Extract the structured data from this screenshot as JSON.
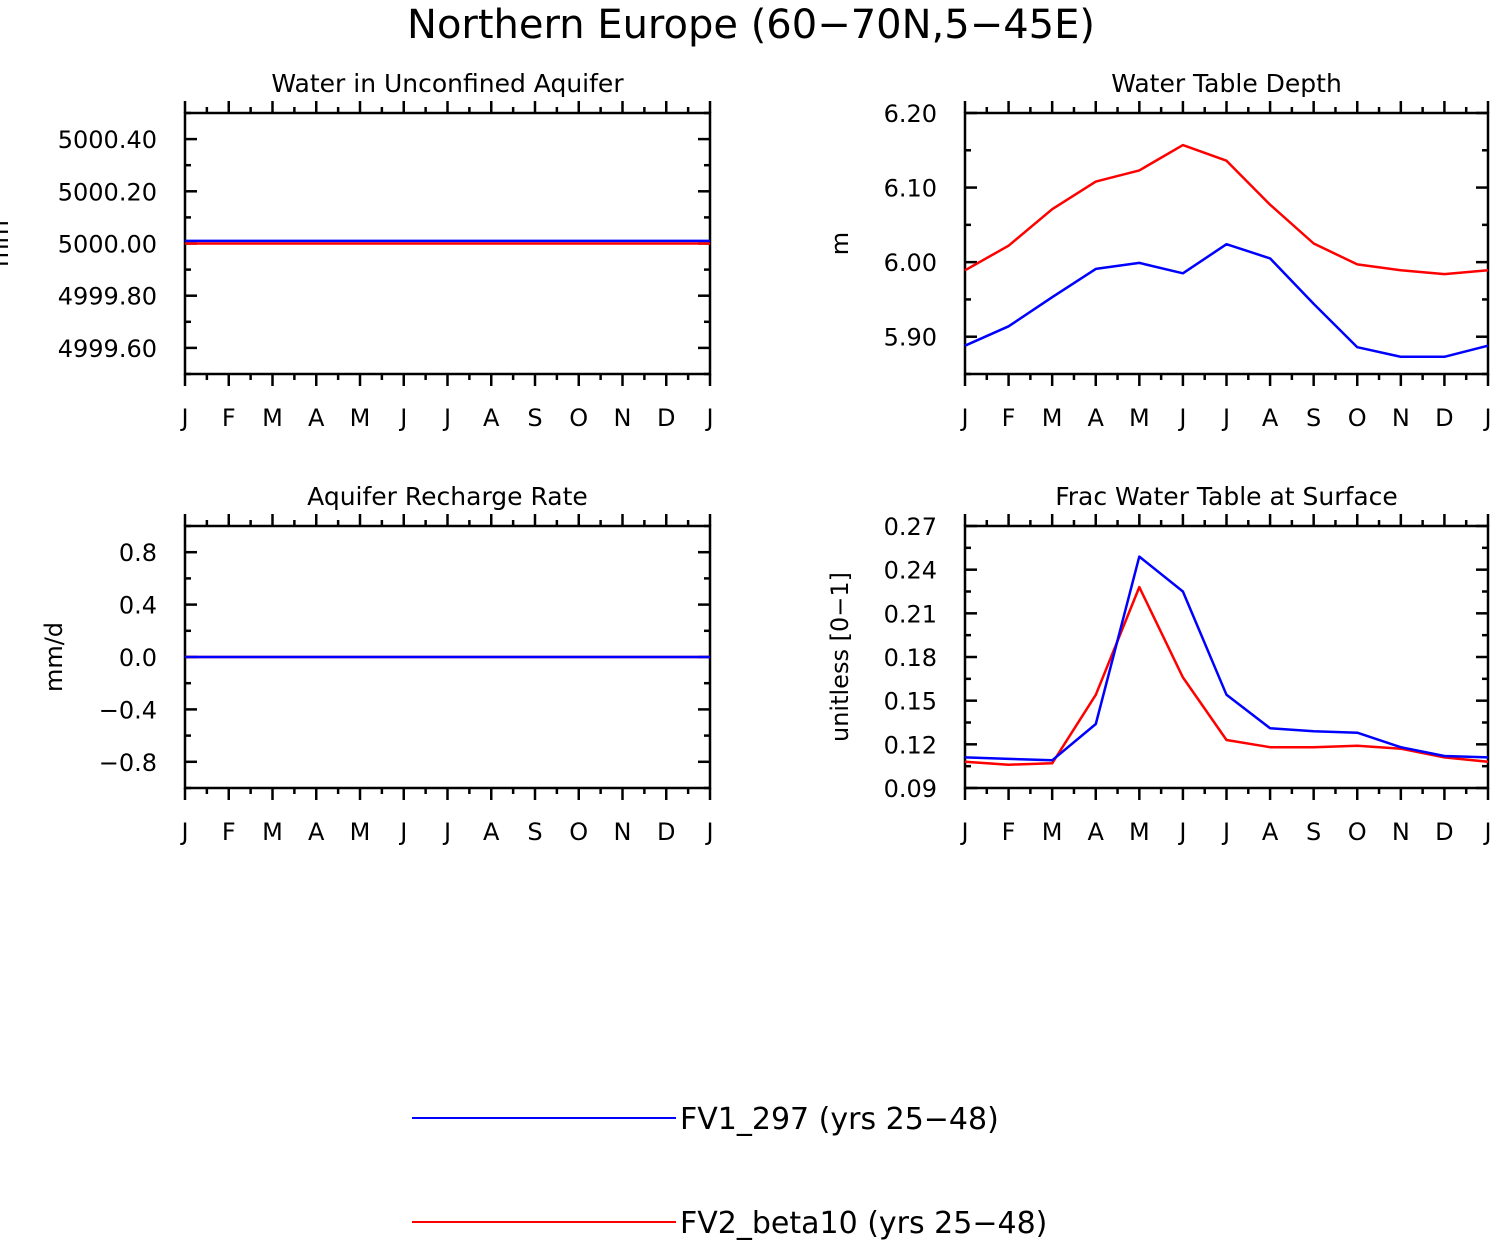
{
  "title": "Northern Europe (60−70N,5−45E)",
  "colors": {
    "FV1_297": "#0000ff",
    "FV2_beta10": "#ff0000"
  },
  "legend": [
    {
      "label": "FV1_297 (yrs 25−48)",
      "color": "#0000ff"
    },
    {
      "label": "FV2_beta10 (yrs 25−48)",
      "color": "#ff0000"
    }
  ],
  "chart_data": [
    {
      "type": "line",
      "title": "Water in Unconfined Aquifer",
      "xlabel": "",
      "ylabel": "mm",
      "categories": [
        "J",
        "F",
        "M",
        "A",
        "M",
        "J",
        "J",
        "A",
        "S",
        "O",
        "N",
        "D",
        "J"
      ],
      "ylim": [
        4999.5,
        5000.5
      ],
      "yticks": [
        4999.6,
        4999.8,
        5000.0,
        5000.2,
        5000.4
      ],
      "ytick_labels": [
        "4999.60",
        "4999.80",
        "5000.00",
        "5000.20",
        "5000.40"
      ],
      "series": [
        {
          "name": "FV1_297 (yrs 25−48)",
          "values": [
            5000.01,
            5000.01,
            5000.01,
            5000.01,
            5000.01,
            5000.01,
            5000.01,
            5000.01,
            5000.01,
            5000.01,
            5000.01,
            5000.01,
            5000.01
          ]
        },
        {
          "name": "FV2_beta10 (yrs 25−48)",
          "values": [
            5000.0,
            5000.0,
            5000.0,
            5000.0,
            5000.0,
            5000.0,
            5000.0,
            5000.0,
            5000.0,
            5000.0,
            5000.0,
            5000.0,
            5000.0
          ]
        }
      ]
    },
    {
      "type": "line",
      "title": "Water Table Depth",
      "xlabel": "",
      "ylabel": "m",
      "categories": [
        "J",
        "F",
        "M",
        "A",
        "M",
        "J",
        "J",
        "A",
        "S",
        "O",
        "N",
        "D",
        "J"
      ],
      "ylim": [
        5.85,
        6.2
      ],
      "yticks": [
        5.9,
        6.0,
        6.1,
        6.2
      ],
      "ytick_labels": [
        "5.90",
        "6.00",
        "6.10",
        "6.20"
      ],
      "series": [
        {
          "name": "FV1_297 (yrs 25−48)",
          "values": [
            5.888,
            5.914,
            5.953,
            5.991,
            5.999,
            5.985,
            6.024,
            6.005,
            5.944,
            5.886,
            5.873,
            5.873,
            5.888
          ]
        },
        {
          "name": "FV2_beta10 (yrs 25−48)",
          "values": [
            5.989,
            6.022,
            6.071,
            6.108,
            6.123,
            6.157,
            6.136,
            6.077,
            6.025,
            5.997,
            5.989,
            5.984,
            5.989
          ]
        }
      ]
    },
    {
      "type": "line",
      "title": "Aquifer Recharge Rate",
      "xlabel": "",
      "ylabel": "mm/d",
      "categories": [
        "J",
        "F",
        "M",
        "A",
        "M",
        "J",
        "J",
        "A",
        "S",
        "O",
        "N",
        "D",
        "J"
      ],
      "ylim": [
        -1.0,
        1.0
      ],
      "yticks": [
        -0.8,
        -0.4,
        0.0,
        0.4,
        0.8
      ],
      "ytick_labels": [
        "−0.8",
        "−0.4",
        "0.0",
        "0.4",
        "0.8"
      ],
      "series": [
        {
          "name": "FV1_297 (yrs 25−48)",
          "values": [
            0,
            0,
            0,
            0,
            0,
            0,
            0,
            0,
            0,
            0,
            0,
            0,
            0
          ]
        },
        {
          "name": "FV2_beta10 (yrs 25−48)",
          "values": [
            0,
            0,
            0,
            0,
            0,
            0,
            0,
            0,
            0,
            0,
            0,
            0,
            0
          ]
        }
      ]
    },
    {
      "type": "line",
      "title": "Frac Water Table at Surface",
      "xlabel": "",
      "ylabel": "unitless [0−1]",
      "categories": [
        "J",
        "F",
        "M",
        "A",
        "M",
        "J",
        "J",
        "A",
        "S",
        "O",
        "N",
        "D",
        "J"
      ],
      "ylim": [
        0.09,
        0.27
      ],
      "yticks": [
        0.09,
        0.12,
        0.15,
        0.18,
        0.21,
        0.24,
        0.27
      ],
      "ytick_labels": [
        "0.09",
        "0.12",
        "0.15",
        "0.18",
        "0.21",
        "0.24",
        "0.27"
      ],
      "series": [
        {
          "name": "FV1_297 (yrs 25−48)",
          "values": [
            0.111,
            0.11,
            0.109,
            0.134,
            0.249,
            0.225,
            0.154,
            0.131,
            0.129,
            0.128,
            0.118,
            0.112,
            0.111
          ]
        },
        {
          "name": "FV2_beta10 (yrs 25−48)",
          "values": [
            0.108,
            0.106,
            0.107,
            0.154,
            0.228,
            0.166,
            0.123,
            0.118,
            0.118,
            0.119,
            0.117,
            0.111,
            0.108
          ]
        }
      ]
    }
  ]
}
